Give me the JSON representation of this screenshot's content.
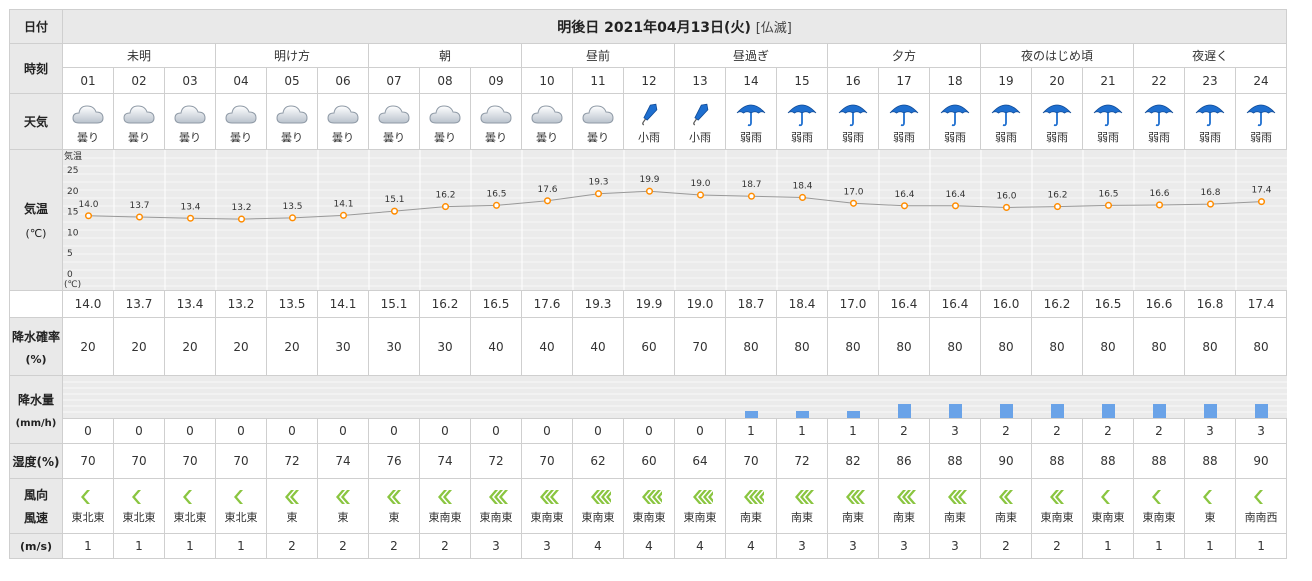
{
  "headers": {
    "date_label": "日付",
    "date_value": "明後日 2021年04月13日(火)",
    "rokuyo": "[仏滅]",
    "time_label": "時刻",
    "weather_label": "天気",
    "temp_label": "気温",
    "temp_unit": "(℃)",
    "precip_prob_label": "降水確率",
    "precip_prob_unit": "(%)",
    "precip_amount_label": "降水量",
    "precip_amount_unit": "(mm/h)",
    "humidity_label": "湿度(%)",
    "wind_dir_label": "風向",
    "wind_speed_label": "風速",
    "wind_speed_unit": "(m/s)"
  },
  "periods": [
    {
      "label": "未明",
      "span": 3
    },
    {
      "label": "明け方",
      "span": 3
    },
    {
      "label": "朝",
      "span": 3
    },
    {
      "label": "昼前",
      "span": 3
    },
    {
      "label": "昼過ぎ",
      "span": 3
    },
    {
      "label": "夕方",
      "span": 3
    },
    {
      "label": "夜のはじめ頃",
      "span": 3
    },
    {
      "label": "夜遅く",
      "span": 3
    }
  ],
  "hours": [
    "01",
    "02",
    "03",
    "04",
    "05",
    "06",
    "07",
    "08",
    "09",
    "10",
    "11",
    "12",
    "13",
    "14",
    "15",
    "16",
    "17",
    "18",
    "19",
    "20",
    "21",
    "22",
    "23",
    "24"
  ],
  "weather": [
    {
      "label": "曇り",
      "icon": "cloud-icon"
    },
    {
      "label": "曇り",
      "icon": "cloud-icon"
    },
    {
      "label": "曇り",
      "icon": "cloud-icon"
    },
    {
      "label": "曇り",
      "icon": "cloud-icon"
    },
    {
      "label": "曇り",
      "icon": "cloud-icon"
    },
    {
      "label": "曇り",
      "icon": "cloud-icon"
    },
    {
      "label": "曇り",
      "icon": "cloud-icon"
    },
    {
      "label": "曇り",
      "icon": "cloud-icon"
    },
    {
      "label": "曇り",
      "icon": "cloud-icon"
    },
    {
      "label": "曇り",
      "icon": "cloud-icon"
    },
    {
      "label": "曇り",
      "icon": "cloud-icon"
    },
    {
      "label": "小雨",
      "icon": "closed-umbrella-icon"
    },
    {
      "label": "小雨",
      "icon": "closed-umbrella-icon"
    },
    {
      "label": "弱雨",
      "icon": "open-umbrella-icon"
    },
    {
      "label": "弱雨",
      "icon": "open-umbrella-icon"
    },
    {
      "label": "弱雨",
      "icon": "open-umbrella-icon"
    },
    {
      "label": "弱雨",
      "icon": "open-umbrella-icon"
    },
    {
      "label": "弱雨",
      "icon": "open-umbrella-icon"
    },
    {
      "label": "弱雨",
      "icon": "open-umbrella-icon"
    },
    {
      "label": "弱雨",
      "icon": "open-umbrella-icon"
    },
    {
      "label": "弱雨",
      "icon": "open-umbrella-icon"
    },
    {
      "label": "弱雨",
      "icon": "open-umbrella-icon"
    },
    {
      "label": "弱雨",
      "icon": "open-umbrella-icon"
    },
    {
      "label": "弱雨",
      "icon": "open-umbrella-icon"
    }
  ],
  "temperature": [
    "14.0",
    "13.7",
    "13.4",
    "13.2",
    "13.5",
    "14.1",
    "15.1",
    "16.2",
    "16.5",
    "17.6",
    "19.3",
    "19.9",
    "19.0",
    "18.7",
    "18.4",
    "17.0",
    "16.4",
    "16.4",
    "16.0",
    "16.2",
    "16.5",
    "16.6",
    "16.8",
    "17.4"
  ],
  "chart_data": {
    "type": "line",
    "x": [
      "01",
      "02",
      "03",
      "04",
      "05",
      "06",
      "07",
      "08",
      "09",
      "10",
      "11",
      "12",
      "13",
      "14",
      "15",
      "16",
      "17",
      "18",
      "19",
      "20",
      "21",
      "22",
      "23",
      "24"
    ],
    "values": [
      14.0,
      13.7,
      13.4,
      13.2,
      13.5,
      14.1,
      15.1,
      16.2,
      16.5,
      17.6,
      19.3,
      19.9,
      19.0,
      18.7,
      18.4,
      17.0,
      16.4,
      16.4,
      16.0,
      16.2,
      16.5,
      16.6,
      16.8,
      17.4
    ],
    "ylabel_top": "気温",
    "yunit": "(℃)",
    "yticks": [
      "25",
      "20",
      "15",
      "10",
      "5",
      "0"
    ],
    "ylim": [
      0,
      25
    ],
    "line_color": "#999999",
    "point_color": "#ff8c00"
  },
  "precip_prob": [
    "20",
    "20",
    "20",
    "20",
    "20",
    "30",
    "30",
    "30",
    "40",
    "40",
    "40",
    "60",
    "70",
    "80",
    "80",
    "80",
    "80",
    "80",
    "80",
    "80",
    "80",
    "80",
    "80",
    "80"
  ],
  "precip_amount": [
    "0",
    "0",
    "0",
    "0",
    "0",
    "0",
    "0",
    "0",
    "0",
    "0",
    "0",
    "0",
    "0",
    "1",
    "1",
    "1",
    "2",
    "3",
    "2",
    "2",
    "2",
    "2",
    "3",
    "3"
  ],
  "precip_bar_level": [
    0,
    0,
    0,
    0,
    0,
    0,
    0,
    0,
    0,
    0,
    0,
    0,
    0,
    1,
    1,
    1,
    2,
    2,
    2,
    2,
    2,
    2,
    2,
    2
  ],
  "precip_bar_max_level": 6,
  "precip_bar_color": "#6aa3e8",
  "humidity": [
    "70",
    "70",
    "70",
    "70",
    "72",
    "74",
    "76",
    "74",
    "72",
    "70",
    "62",
    "60",
    "64",
    "70",
    "72",
    "82",
    "86",
    "88",
    "90",
    "88",
    "88",
    "88",
    "88",
    "90"
  ],
  "wind_dir": [
    "東北東",
    "東北東",
    "東北東",
    "東北東",
    "東",
    "東",
    "東",
    "東南東",
    "東南東",
    "東南東",
    "東南東",
    "東南東",
    "東南東",
    "南東",
    "南東",
    "南東",
    "南東",
    "南東",
    "南東",
    "東南東",
    "東南東",
    "東南東",
    "東",
    "南南西"
  ],
  "wind_icon": [
    "wind-arrow-1-icon",
    "wind-arrow-1-icon",
    "wind-arrow-1-icon",
    "wind-arrow-1-icon",
    "wind-arrow-2-icon",
    "wind-arrow-2-icon",
    "wind-arrow-2-icon",
    "wind-arrow-2-icon",
    "wind-arrow-3-icon",
    "wind-arrow-3-icon",
    "wind-arrow-4-icon",
    "wind-arrow-4-icon",
    "wind-arrow-4-icon",
    "wind-arrow-4-icon",
    "wind-arrow-3-icon",
    "wind-arrow-3-icon",
    "wind-arrow-3-icon",
    "wind-arrow-3-icon",
    "wind-arrow-2-icon",
    "wind-arrow-2-icon",
    "wind-arrow-1-icon",
    "wind-arrow-1-icon",
    "wind-arrow-1-icon",
    "wind-arrow-1-icon"
  ],
  "wind_speed": [
    "1",
    "1",
    "1",
    "1",
    "2",
    "2",
    "2",
    "2",
    "3",
    "3",
    "4",
    "4",
    "4",
    "4",
    "3",
    "3",
    "3",
    "3",
    "2",
    "2",
    "1",
    "1",
    "1",
    "1"
  ],
  "colors": {
    "header_bg": "#e9e9e9",
    "grid_line": "#cfcfcf",
    "chart_bg": "#ebebeb",
    "wind_arrow": "#8ac540",
    "umbrella_blue": "#1e6fd0"
  }
}
